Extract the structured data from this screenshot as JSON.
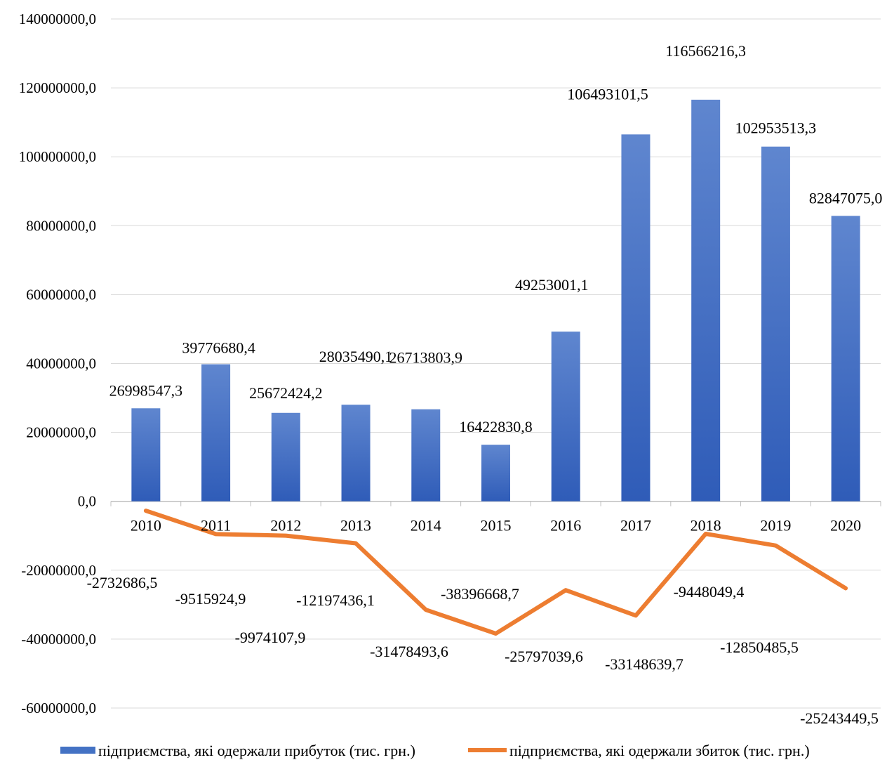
{
  "chart_data": {
    "type": "bar",
    "categories": [
      "2010",
      "2011",
      "2012",
      "2013",
      "2014",
      "2015",
      "2016",
      "2017",
      "2018",
      "2019",
      "2020"
    ],
    "series": [
      {
        "name": "підприємства, які одержали прибуток (тис. грн.)",
        "type": "bar",
        "color": "#4472C4",
        "values": [
          26998547.3,
          39776680.4,
          25672424.2,
          28035490.1,
          26713803.9,
          16422830.8,
          49253001.1,
          106493101.5,
          116566216.3,
          102953513.3,
          82847075.0
        ],
        "labels": [
          "26998547,3",
          "39776680,4",
          "25672424,2",
          "28035490,1",
          "26713803,9",
          "16422830,8",
          "49253001,1",
          "106493101,5",
          "116566216,3",
          "102953513,3",
          "82847075,0"
        ]
      },
      {
        "name": "підприємства, які одержали збиток (тис. грн.)",
        "type": "line",
        "color": "#ED7D31",
        "values": [
          -2732686.5,
          -9515924.9,
          -9974107.9,
          -12197436.1,
          -31478493.6,
          -38396668.7,
          -25797039.6,
          -33148639.7,
          -9448049.4,
          -12850485.5,
          -25243449.5
        ],
        "labels": [
          "-2732686,5",
          "-9515924,9",
          "-9974107,9",
          "-12197436,1",
          "-31478493,6",
          "-38396668,7",
          "-25797039,6",
          "-33148639,7",
          "-9448049,4",
          "-12850485,5",
          "-25243449,5"
        ]
      }
    ],
    "yticks": [
      {
        "value": 140000000,
        "label": "140000000,0"
      },
      {
        "value": 120000000,
        "label": "120000000,0"
      },
      {
        "value": 100000000,
        "label": "100000000,0"
      },
      {
        "value": 80000000,
        "label": "80000000,0"
      },
      {
        "value": 60000000,
        "label": "60000000,0"
      },
      {
        "value": 40000000,
        "label": "40000000,0"
      },
      {
        "value": 20000000,
        "label": "20000000,0"
      },
      {
        "value": 0,
        "label": "0,0"
      },
      {
        "value": -20000000,
        "label": "-20000000,0"
      },
      {
        "value": -40000000,
        "label": "-40000000,0"
      },
      {
        "value": -60000000,
        "label": "-60000000,0"
      }
    ],
    "ylim": [
      -60000000,
      140000000
    ],
    "title": "",
    "xlabel": "",
    "ylabel": "",
    "grid": true,
    "legend_position": "bottom"
  }
}
